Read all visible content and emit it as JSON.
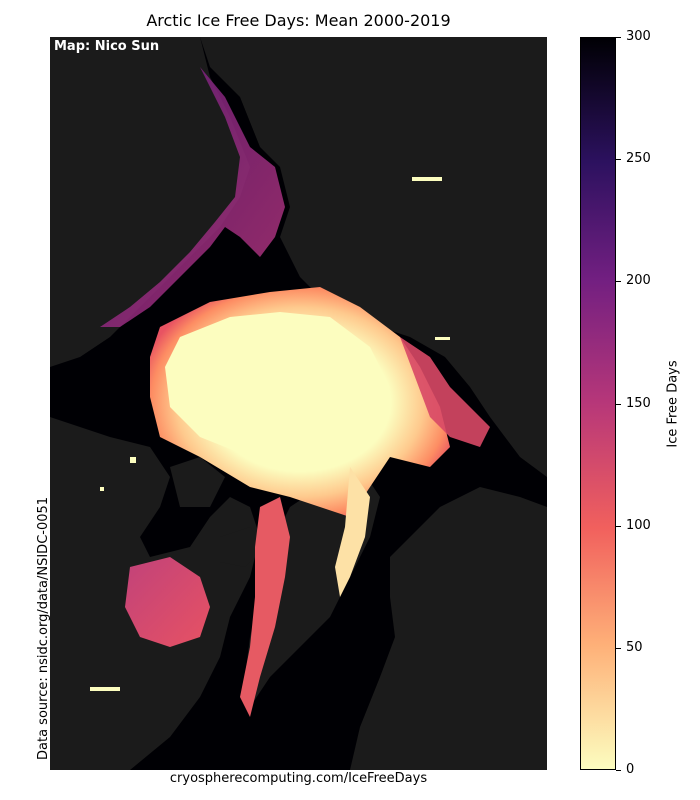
{
  "title": "Arctic Ice Free Days: Mean 2000-2019",
  "map_credit": "Map: Nico Sun",
  "data_source": "Data source: nsidc.org/data/NSIDC-0051",
  "website": "cryospherecomputing.com/IceFreeDays",
  "colorbar": {
    "label": "Ice Free Days",
    "min": 0,
    "max": 300,
    "ticks": [
      "0",
      "50",
      "100",
      "150",
      "200",
      "250",
      "300"
    ],
    "colormap": "magma_r"
  },
  "colors": {
    "land": "#1b1b1b",
    "ice_free_all_year": "#000004",
    "always_ice": "#fcfdbf"
  }
}
